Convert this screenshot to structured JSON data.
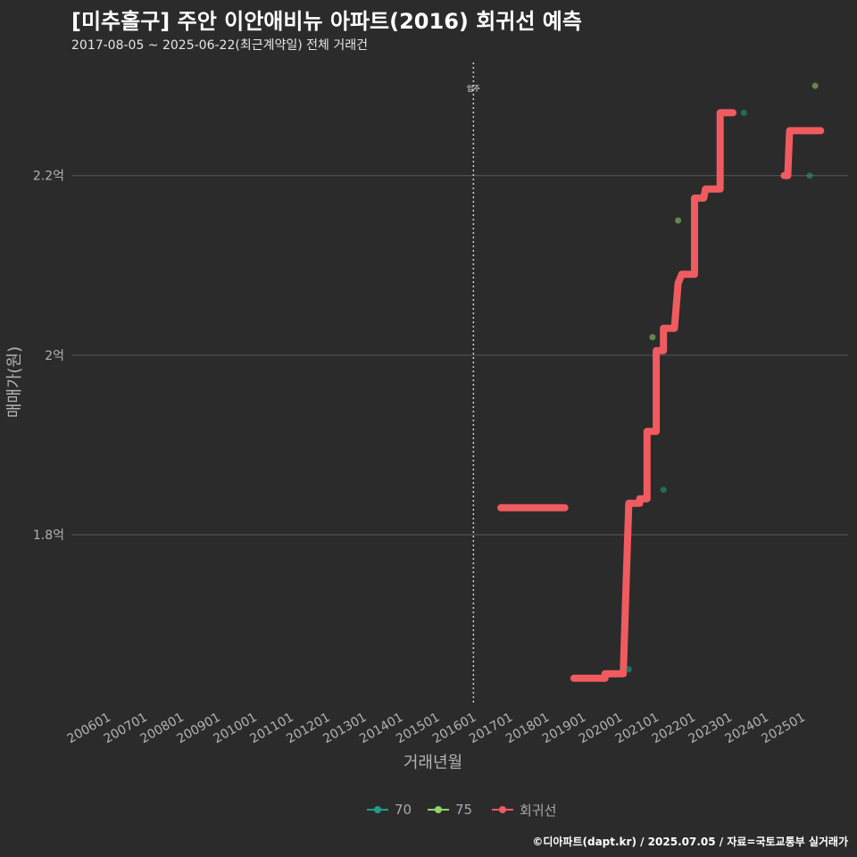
{
  "header": {
    "title": "[미추홀구] 주안 이안애비뉴 아파트(2016) 회귀선 예측",
    "subtitle": "2017-08-05 ~ 2025-06-22(최근계약일) 전체 거래건"
  },
  "caption": "©디아파트(dapt.kr) / 2025.07.05 / 자료=국토교통부 실거래가",
  "colors": {
    "background": "#2b2b2c",
    "grid": "#5a5a5a",
    "series_70": "#1f9e89",
    "series_75": "#8fd46a",
    "regression": "#f05b5f",
    "axis_text": "#b3b3b3"
  },
  "chart_data": {
    "type": "scatter",
    "title": "[미추홀구] 주안 이안애비뉴 아파트(2016) 회귀선 예측",
    "xlabel": "거래년월",
    "ylabel": "매매가(원)",
    "x_ticks": [
      "200601",
      "200701",
      "200801",
      "200901",
      "201001",
      "201101",
      "201201",
      "201301",
      "201401",
      "201501",
      "201601",
      "201701",
      "201801",
      "201901",
      "202001",
      "202101",
      "202201",
      "202301",
      "202401",
      "202501"
    ],
    "xlim": [
      2005.0,
      2026.25
    ],
    "y_ticks": [
      {
        "value": 1.8,
        "label": "1.8억"
      },
      {
        "value": 2.0,
        "label": "2억"
      },
      {
        "value": 2.2,
        "label": "2.2억"
      }
    ],
    "ylim": [
      1.61,
      2.33
    ],
    "grid": true,
    "legend_position": "bottom",
    "annotation": {
      "x": 2016.0,
      "label": "입주"
    },
    "series": [
      {
        "name": "70",
        "points": [
          [
            2020.25,
            1.65
          ],
          [
            2021.2,
            1.85
          ],
          [
            2023.4,
            2.27
          ],
          [
            2025.2,
            2.2
          ]
        ]
      },
      {
        "name": "75",
        "points": [
          [
            2020.9,
            2.02
          ],
          [
            2021.6,
            2.15
          ],
          [
            2025.35,
            2.3
          ]
        ]
      },
      {
        "name": "회귀선",
        "segments": [
          [
            [
              2016.75,
              1.83
            ],
            [
              2018.5,
              1.83
            ]
          ],
          [
            [
              2018.75,
              1.64
            ],
            [
              2019.6,
              1.64
            ],
            [
              2019.6,
              1.645
            ],
            [
              2020.1,
              1.645
            ],
            [
              2020.18,
              1.75
            ],
            [
              2020.25,
              1.835
            ],
            [
              2020.55,
              1.835
            ],
            [
              2020.55,
              1.84
            ],
            [
              2020.75,
              1.84
            ],
            [
              2020.75,
              1.915
            ],
            [
              2021.0,
              1.915
            ],
            [
              2021.0,
              2.005
            ],
            [
              2021.2,
              2.005
            ],
            [
              2021.2,
              2.03
            ],
            [
              2021.5,
              2.03
            ],
            [
              2021.6,
              2.08
            ],
            [
              2021.7,
              2.09
            ],
            [
              2022.05,
              2.09
            ],
            [
              2022.05,
              2.175
            ],
            [
              2022.3,
              2.175
            ],
            [
              2022.35,
              2.185
            ],
            [
              2022.75,
              2.185
            ],
            [
              2022.75,
              2.27
            ],
            [
              2023.1,
              2.27
            ]
          ],
          [
            [
              2024.5,
              2.2
            ],
            [
              2024.6,
              2.2
            ],
            [
              2024.65,
              2.25
            ],
            [
              2025.5,
              2.25
            ]
          ]
        ]
      }
    ]
  },
  "legend": [
    {
      "label": "70",
      "color": "#1f9e89"
    },
    {
      "label": "75",
      "color": "#8fd46a"
    },
    {
      "label": "회귀선",
      "color": "#f05b5f"
    }
  ]
}
